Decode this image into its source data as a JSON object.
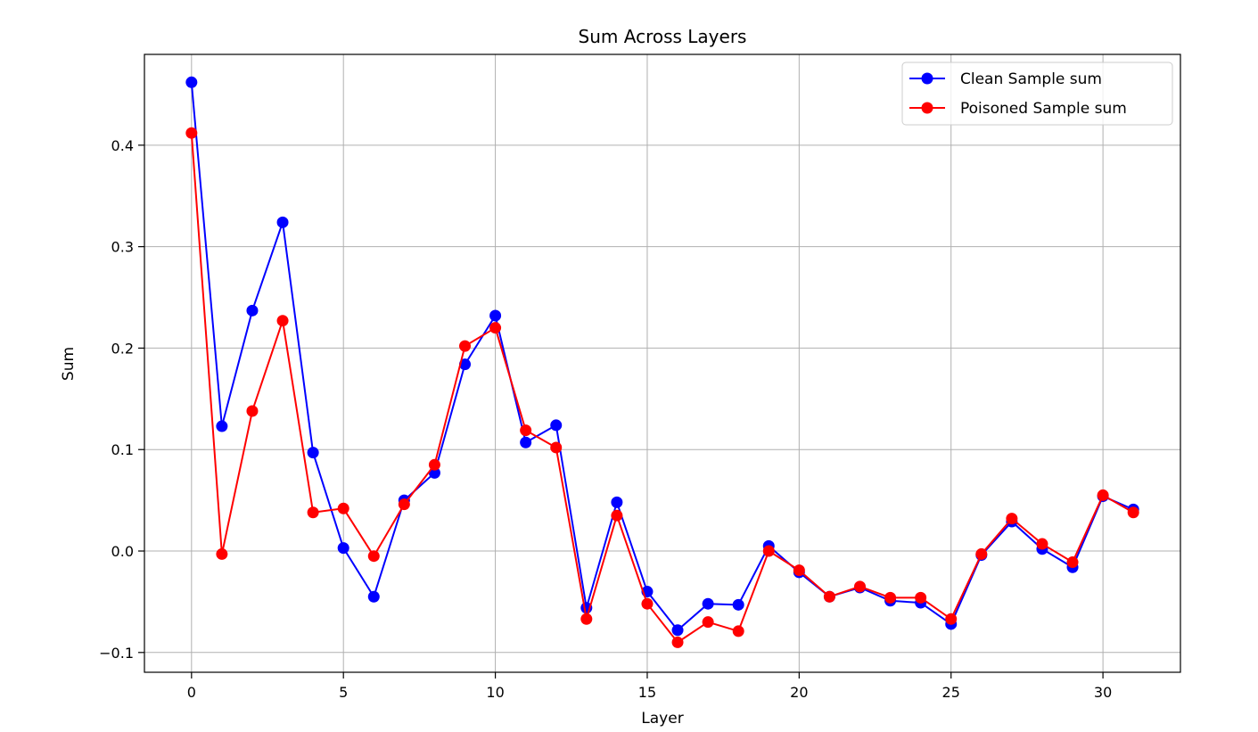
{
  "chart_data": {
    "type": "line",
    "title": "Sum Across Layers",
    "xlabel": "Layer",
    "ylabel": "Sum",
    "xlim": [
      -1.55,
      32.55
    ],
    "ylim": [
      -0.1195,
      0.4895
    ],
    "xticks": [
      0,
      5,
      10,
      15,
      20,
      25,
      30
    ],
    "xtick_labels": [
      "0",
      "5",
      "10",
      "15",
      "20",
      "25",
      "30"
    ],
    "yticks": [
      -0.1,
      0.0,
      0.1,
      0.2,
      0.3,
      0.4
    ],
    "ytick_labels": [
      "−0.1",
      "0.0",
      "0.1",
      "0.2",
      "0.3",
      "0.4"
    ],
    "grid": true,
    "legend_position": "top-right",
    "x": [
      0,
      1,
      2,
      3,
      4,
      5,
      6,
      7,
      8,
      9,
      10,
      11,
      12,
      13,
      14,
      15,
      16,
      17,
      18,
      19,
      20,
      21,
      22,
      23,
      24,
      25,
      26,
      27,
      28,
      29,
      30,
      31
    ],
    "series": [
      {
        "name": "Clean Sample sum",
        "color": "#0000ff",
        "values": [
          0.462,
          0.123,
          0.237,
          0.324,
          0.097,
          0.003,
          -0.045,
          0.05,
          0.077,
          0.184,
          0.232,
          0.107,
          0.124,
          -0.056,
          0.048,
          -0.04,
          -0.078,
          -0.052,
          -0.053,
          0.005,
          -0.021,
          -0.045,
          -0.036,
          -0.049,
          -0.051,
          -0.072,
          -0.004,
          0.029,
          0.002,
          -0.016,
          0.054,
          0.041
        ]
      },
      {
        "name": "Poisoned Sample sum",
        "color": "#ff0000",
        "values": [
          0.412,
          -0.003,
          0.138,
          0.227,
          0.038,
          0.042,
          -0.005,
          0.046,
          0.085,
          0.202,
          0.22,
          0.119,
          0.102,
          -0.067,
          0.035,
          -0.052,
          -0.09,
          -0.07,
          -0.079,
          0.0,
          -0.019,
          -0.045,
          -0.035,
          -0.046,
          -0.046,
          -0.067,
          -0.003,
          0.032,
          0.007,
          -0.011,
          0.055,
          0.038
        ]
      }
    ]
  }
}
